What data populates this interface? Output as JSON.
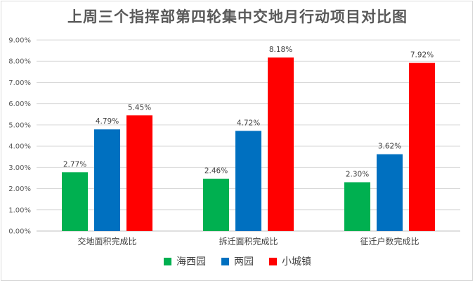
{
  "chart_data": {
    "type": "bar",
    "title": "上周三个指挥部第四轮集中交地月行动项目对比图",
    "categories": [
      "交地面积完成比",
      "拆迁面积完成比",
      "征迁户数完成比"
    ],
    "series": [
      {
        "name": "海西园",
        "color": "#00b050",
        "values": [
          2.77,
          2.46,
          2.3
        ],
        "labels": [
          "2.77%",
          "2.46%",
          "2.30%"
        ]
      },
      {
        "name": "两园",
        "color": "#0070c0",
        "values": [
          4.79,
          4.72,
          3.62
        ],
        "labels": [
          "4.79%",
          "4.72%",
          "3.62%"
        ]
      },
      {
        "name": "小城镇",
        "color": "#ff0000",
        "values": [
          5.45,
          8.18,
          7.92
        ],
        "labels": [
          "5.45%",
          "8.18%",
          "7.92%"
        ]
      }
    ],
    "yticks": [
      "0.00%",
      "1.00%",
      "2.00%",
      "3.00%",
      "4.00%",
      "5.00%",
      "6.00%",
      "7.00%",
      "8.00%",
      "9.00%"
    ],
    "ylim": [
      0,
      9
    ],
    "grid": true,
    "legend_position": "bottom"
  }
}
